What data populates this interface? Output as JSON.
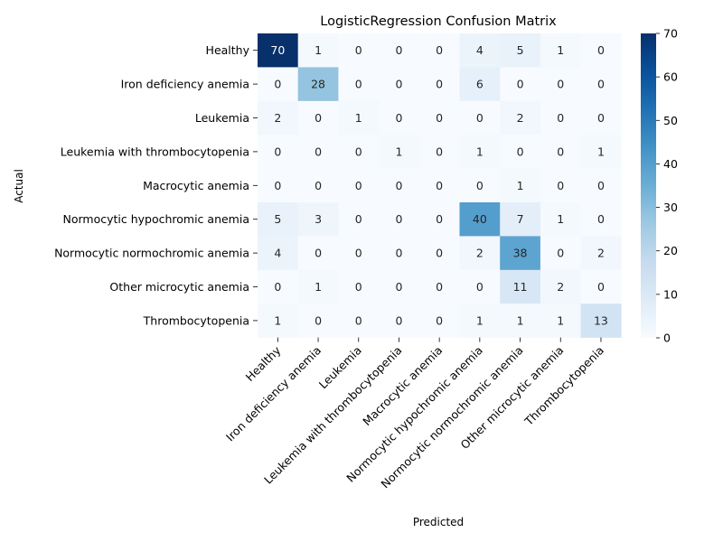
{
  "chart_data": {
    "type": "heatmap",
    "title": "LogisticRegression Confusion Matrix",
    "xlabel": "Predicted",
    "ylabel": "Actual",
    "categories": [
      "Healthy",
      "Iron deficiency anemia",
      "Leukemia",
      "Leukemia with thrombocytopenia",
      "Macrocytic anemia",
      "Normocytic hypochromic anemia",
      "Normocytic normochromic anemia",
      "Other microcytic anemia",
      "Thrombocytopenia"
    ],
    "values": [
      [
        70,
        1,
        0,
        0,
        0,
        4,
        5,
        1,
        0
      ],
      [
        0,
        28,
        0,
        0,
        0,
        6,
        0,
        0,
        0
      ],
      [
        2,
        0,
        1,
        0,
        0,
        0,
        2,
        0,
        0
      ],
      [
        0,
        0,
        0,
        1,
        0,
        1,
        0,
        0,
        1
      ],
      [
        0,
        0,
        0,
        0,
        0,
        0,
        1,
        0,
        0
      ],
      [
        5,
        3,
        0,
        0,
        0,
        40,
        7,
        1,
        0
      ],
      [
        4,
        0,
        0,
        0,
        0,
        2,
        38,
        0,
        2
      ],
      [
        0,
        1,
        0,
        0,
        0,
        0,
        11,
        2,
        0
      ],
      [
        1,
        0,
        0,
        0,
        0,
        1,
        1,
        1,
        13
      ]
    ],
    "colormap": "Blues",
    "colorbar": {
      "range": [
        0,
        70
      ],
      "ticks": [
        0,
        10,
        20,
        30,
        40,
        50,
        60,
        70
      ]
    }
  }
}
